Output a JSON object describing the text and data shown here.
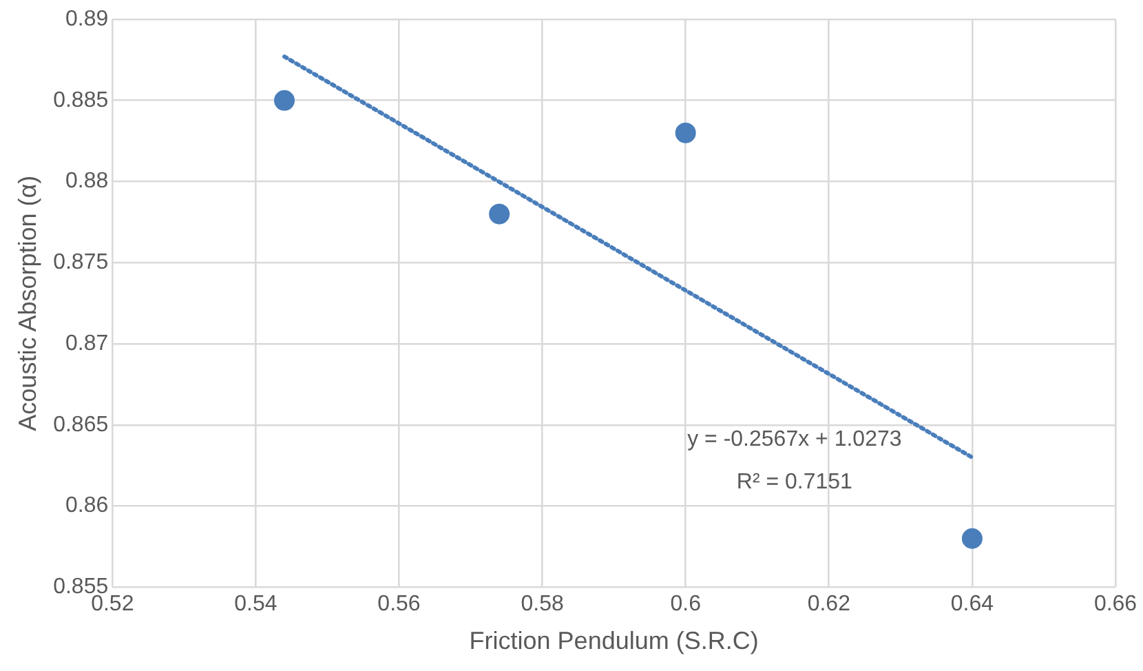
{
  "chart_data": {
    "type": "scatter",
    "xlabel": "Friction Pendulum (S.R.C)",
    "ylabel": "Acoustic Absorption (α)",
    "series": [
      {
        "color": "#4a7ebb",
        "x": [
          0.544,
          0.574,
          0.6,
          0.64
        ],
        "values": [
          0.885,
          0.878,
          0.883,
          0.858
        ],
        "marker": "circle"
      },
      {
        "type": "line",
        "color": "#4a7ebb",
        "x": [
          0.544,
          0.64
        ],
        "values": [
          0.8877,
          0.863
        ],
        "line_style": "dotted",
        "marker": "none"
      }
    ],
    "xlim": [
      0.52,
      0.66
    ],
    "xticks": [
      0.52,
      0.54,
      0.56,
      0.58,
      0.6,
      0.62,
      0.64,
      0.66
    ],
    "ylim": [
      0.855,
      0.89
    ],
    "yticks": [
      0.855,
      0.86,
      0.865,
      0.87,
      0.875,
      0.88,
      0.885,
      0.89
    ],
    "grid": true,
    "legend": false,
    "annotations": [
      "y = -0.2567x + 1.0273",
      "R² = 0.7151"
    ]
  }
}
